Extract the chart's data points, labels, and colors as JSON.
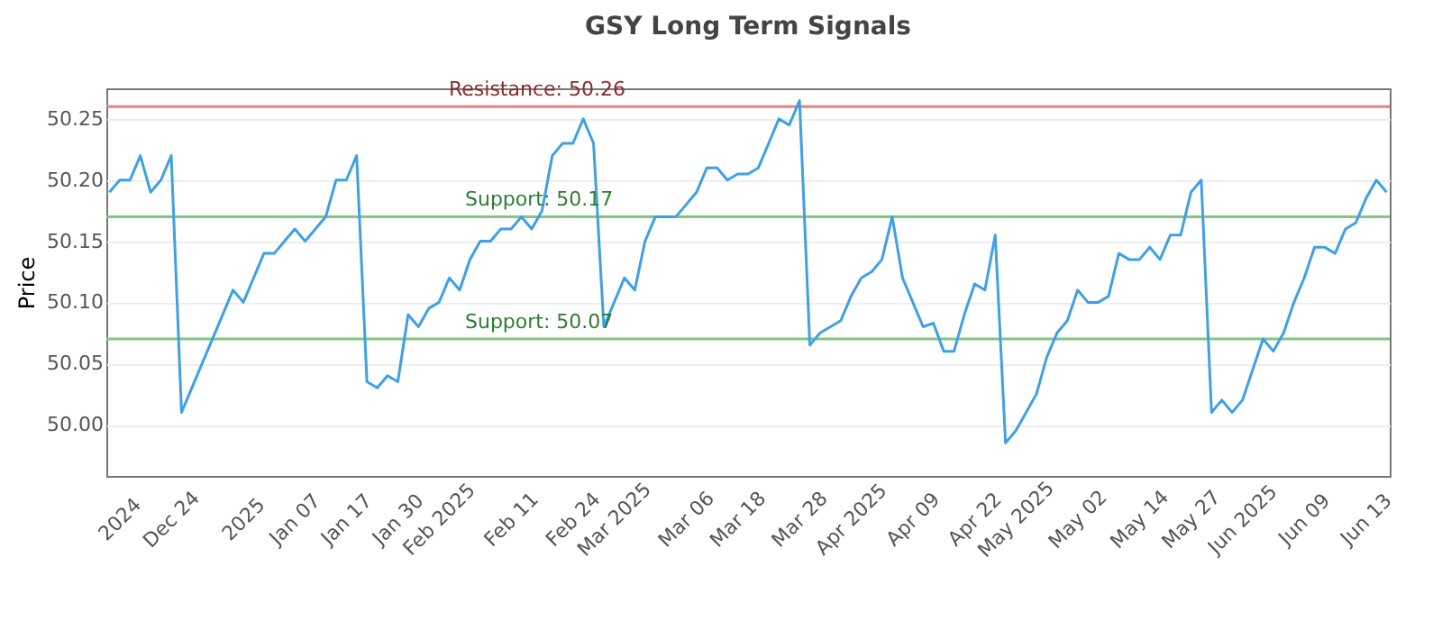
{
  "chart_data": {
    "type": "line",
    "title": "GSY Long Term Signals",
    "ylabel": "Price",
    "categories": [
      null,
      "2024",
      null,
      null,
      null,
      null,
      "Dec 24",
      null,
      null,
      null,
      null,
      null,
      null,
      "2025",
      null,
      null,
      null,
      null,
      "Jan 07",
      null,
      null,
      null,
      null,
      "Jan 17",
      null,
      null,
      null,
      null,
      "Jan 30",
      null,
      null,
      null,
      "Feb 2025",
      null,
      null,
      null,
      null,
      null,
      null,
      "Feb 11",
      null,
      null,
      null,
      null,
      null,
      "Feb 24",
      null,
      null,
      null,
      "Mar 2025",
      null,
      null,
      null,
      null,
      null,
      null,
      "Mar 06",
      null,
      null,
      null,
      null,
      "Mar 18",
      null,
      null,
      null,
      null,
      null,
      "Mar 28",
      null,
      null,
      null,
      null,
      "Apr 2025",
      null,
      null,
      null,
      null,
      null,
      "Apr 09",
      null,
      null,
      null,
      null,
      null,
      "Apr 22",
      null,
      null,
      null,
      "May 2025",
      null,
      null,
      null,
      null,
      null,
      "May 02",
      null,
      null,
      null,
      null,
      null,
      "May 14",
      null,
      null,
      null,
      null,
      "May 27",
      null,
      null,
      null,
      null,
      "Jun 2025",
      null,
      null,
      null,
      null,
      null,
      "Jun 09",
      null,
      null,
      null,
      null,
      null,
      "Jun 13",
      null,
      null
    ],
    "series": [
      {
        "color": "#3fa0e6",
        "values": [
          50.19,
          50.2,
          50.2,
          50.22,
          50.19,
          50.2,
          50.22,
          50.01,
          50.03,
          50.05,
          50.07,
          50.09,
          50.11,
          50.1,
          50.12,
          50.14,
          50.14,
          50.15,
          50.16,
          50.15,
          50.16,
          50.17,
          50.2,
          50.2,
          50.22,
          50.035,
          50.03,
          50.04,
          50.035,
          50.09,
          50.08,
          50.095,
          50.1,
          50.12,
          50.11,
          50.135,
          50.15,
          50.15,
          50.16,
          50.16,
          50.17,
          50.16,
          50.175,
          50.22,
          50.23,
          50.23,
          50.25,
          50.23,
          50.08,
          50.1,
          50.12,
          50.11,
          50.15,
          50.17,
          50.17,
          50.17,
          50.18,
          50.19,
          50.21,
          50.21,
          50.2,
          50.205,
          50.205,
          50.21,
          50.23,
          50.25,
          50.245,
          50.265,
          50.065,
          50.075,
          50.08,
          50.085,
          50.105,
          50.12,
          50.125,
          50.135,
          50.17,
          50.12,
          50.1,
          50.08,
          50.083,
          50.06,
          50.06,
          50.09,
          50.115,
          50.11,
          50.155,
          49.985,
          49.995,
          50.01,
          50.025,
          50.055,
          50.075,
          50.085,
          50.11,
          50.1,
          50.1,
          50.105,
          50.14,
          50.135,
          50.135,
          50.145,
          50.135,
          50.155,
          50.155,
          50.19,
          50.2,
          50.01,
          50.02,
          50.01,
          50.02,
          50.045,
          50.07,
          50.06,
          50.075,
          50.1,
          50.12,
          50.145,
          50.145,
          50.14,
          50.16,
          50.165,
          50.185,
          50.2,
          50.19
        ]
      }
    ],
    "ylim": [
      49.958,
      50.275
    ],
    "yticks": [
      {
        "value": 50.0,
        "label": "50.00"
      },
      50.05,
      {
        "value": 50.1,
        "label": "50.10"
      },
      50.15,
      {
        "value": 50.2,
        "label": "50.20"
      },
      50.25
    ],
    "grid": "y",
    "marker": "none",
    "line_style": "solid",
    "ref_lines": [
      {
        "axis": "y",
        "value": 50.26,
        "label": "Resistance: 50.26",
        "color": "#e88080"
      },
      {
        "axis": "y",
        "value": 50.17,
        "label": "Support: 50.17",
        "color": "#80c880"
      },
      {
        "axis": "y",
        "value": 50.07,
        "label": "Support: 50.07",
        "color": "#80c880"
      }
    ]
  }
}
